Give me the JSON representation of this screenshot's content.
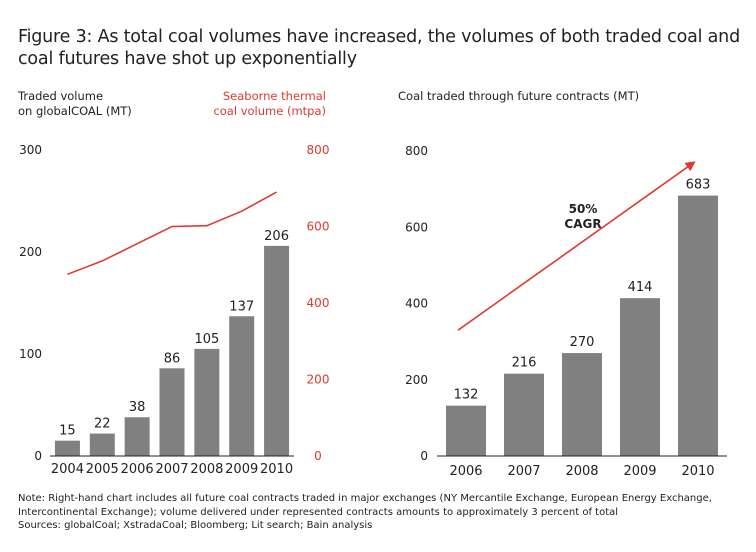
{
  "title": "Figure 3: As total coal volumes have increased, the volumes of both traded coal and coal futures have shot up exponentially",
  "left_chart": {
    "left_axis_label_line1": "Traded volume",
    "left_axis_label_line2": "on globalCOAL (MT)",
    "right_axis_label_line1": "Seaborne thermal",
    "right_axis_label_line2": "coal volume (mtpa)"
  },
  "right_chart": {
    "axis_label": "Coal traded through future contracts (MT)",
    "annotation_line1": "50%",
    "annotation_line2": "CAGR"
  },
  "notes": {
    "line1": "Note: Right-hand chart includes all future coal contracts traded in major exchanges (NY Mercantile Exchange, European Energy Exchange,",
    "line2": "Intercontinental Exchange); volume delivered under represented contracts amounts to approximately 3 percent of total",
    "line3": "Sources: globalCoal; XstradaCoal; Bloomberg; Lit search; Bain analysis"
  },
  "colors": {
    "bar": "#808080",
    "line": "#e03a2e"
  },
  "chart_data": [
    {
      "type": "bar",
      "title": "Traded volume on globalCOAL (MT)",
      "categories": [
        "2004",
        "2005",
        "2006",
        "2007",
        "2008",
        "2009",
        "2010"
      ],
      "values": [
        15,
        22,
        38,
        86,
        105,
        137,
        206
      ],
      "ylabel": "Traded volume on globalCOAL (MT)",
      "ylim": [
        0,
        300
      ],
      "yticks": [
        0,
        100,
        200,
        300
      ],
      "secondary_series": {
        "type": "line",
        "name": "Seaborne thermal coal volume (mtpa)",
        "values": [
          475,
          510,
          555,
          600,
          602,
          640,
          690
        ],
        "ylim": [
          0,
          800
        ],
        "yticks": [
          0,
          200,
          400,
          600,
          800
        ]
      }
    },
    {
      "type": "bar",
      "title": "Coal traded through future contracts (MT)",
      "categories": [
        "2006",
        "2007",
        "2008",
        "2009",
        "2010"
      ],
      "values": [
        132,
        216,
        270,
        414,
        683
      ],
      "ylim": [
        0,
        800
      ],
      "yticks": [
        0,
        200,
        400,
        600,
        800
      ],
      "trend_arrow": {
        "label": "50% CAGR",
        "start": 330,
        "end": 770
      }
    }
  ]
}
